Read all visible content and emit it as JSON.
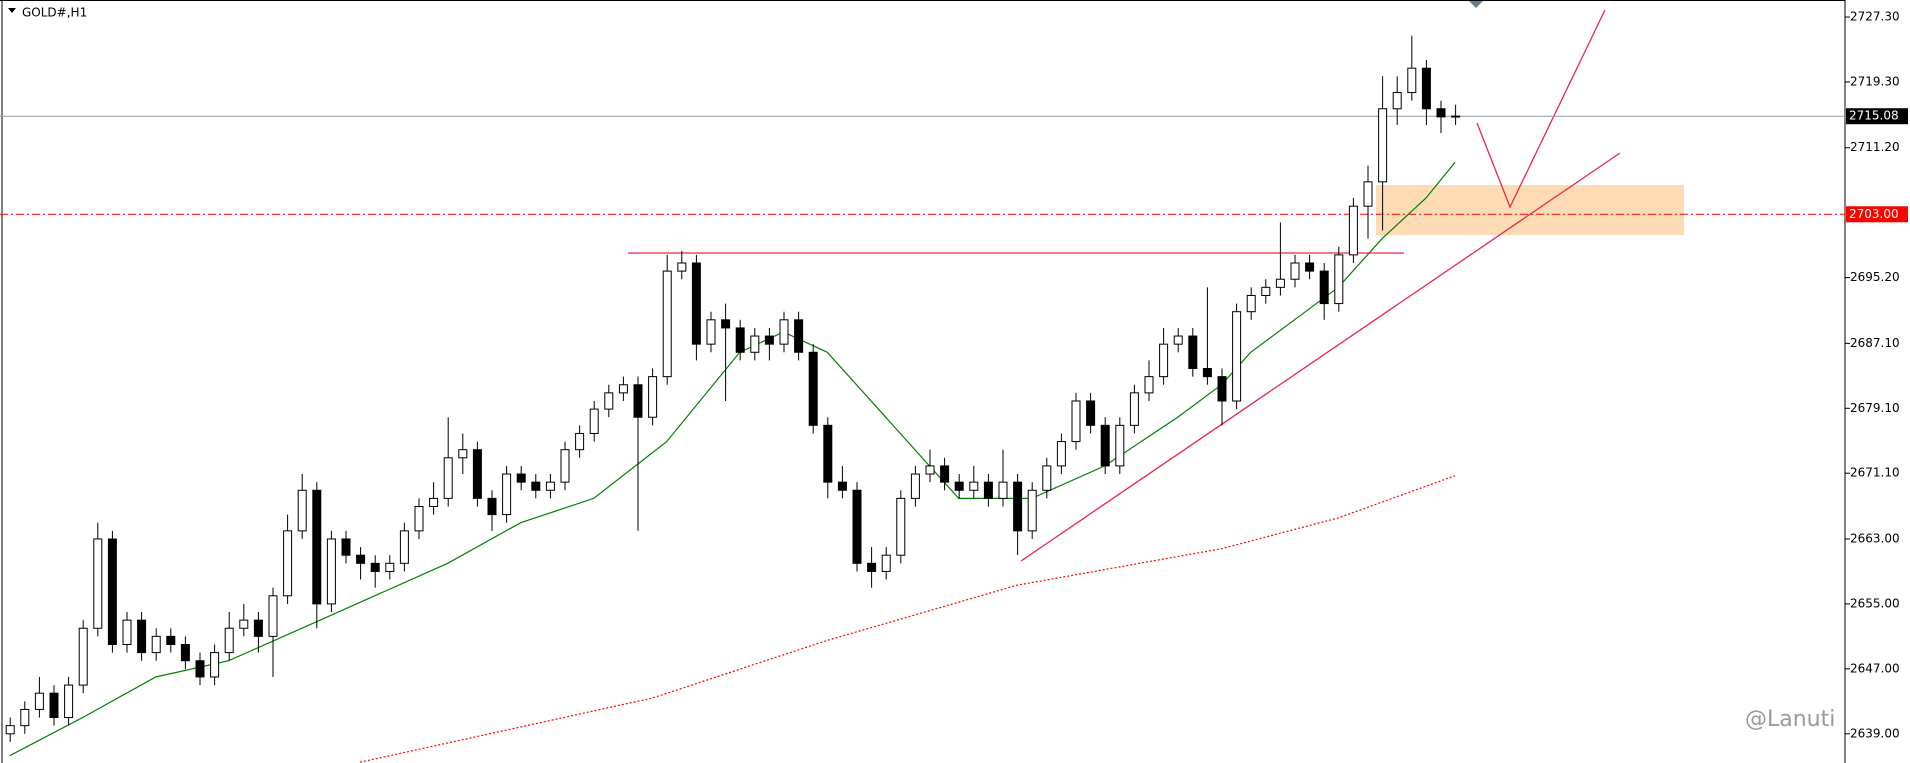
{
  "chart_data": {
    "type": "candlestick",
    "title": "GOLD#,H1",
    "up_color": "#ffffff",
    "down_color": "#000000",
    "edge_color": "#000000",
    "ylim": [
      2635.4,
      2729.4
    ],
    "yticks": [
      {
        "value": 2727.3,
        "label": "2727.30"
      },
      {
        "value": 2719.3,
        "label": "2719.30"
      },
      {
        "value": 2711.2,
        "label": "2711.20"
      },
      {
        "value": 2695.2,
        "label": "2695.20"
      },
      {
        "value": 2687.1,
        "label": "2687.10"
      },
      {
        "value": 2679.1,
        "label": "2679.10"
      },
      {
        "value": 2671.1,
        "label": "2671.10"
      },
      {
        "value": 2663,
        "label": "2663.00"
      },
      {
        "value": 2655,
        "label": "2655.00"
      },
      {
        "value": 2647,
        "label": "2647.00"
      },
      {
        "value": 2639,
        "label": "2639.00"
      }
    ],
    "current_price": {
      "value": 2715.08,
      "label": "2715.08",
      "color": "#8c9aa8"
    },
    "marked_level": {
      "value": 2703,
      "label": "2703.00",
      "color": "#ff0000"
    },
    "watermark": "@Lanuti",
    "ohlc": [
      [
        2639,
        2641,
        2638,
        2640
      ],
      [
        2640,
        2643,
        2639,
        2642
      ],
      [
        2642,
        2646,
        2641,
        2644
      ],
      [
        2644,
        2645,
        2640,
        2641
      ],
      [
        2641,
        2646,
        2640,
        2645
      ],
      [
        2645,
        2653,
        2644,
        2652
      ],
      [
        2652,
        2665,
        2651,
        2663
      ],
      [
        2663,
        2664,
        2649,
        2650
      ],
      [
        2650,
        2654,
        2649,
        2653
      ],
      [
        2653,
        2654,
        2648,
        2649
      ],
      [
        2649,
        2652,
        2648,
        2651
      ],
      [
        2651,
        2652,
        2649,
        2650
      ],
      [
        2650,
        2651,
        2647,
        2648
      ],
      [
        2648,
        2649,
        2645,
        2646
      ],
      [
        2646,
        2650,
        2645,
        2649
      ],
      [
        2649,
        2654,
        2648,
        2652
      ],
      [
        2652,
        2655,
        2651,
        2653
      ],
      [
        2653,
        2654,
        2649,
        2651
      ],
      [
        2651,
        2657,
        2646,
        2656
      ],
      [
        2656,
        2666,
        2655,
        2664
      ],
      [
        2664,
        2671,
        2663,
        2669
      ],
      [
        2669,
        2670,
        2652,
        2655
      ],
      [
        2655,
        2664,
        2654,
        2663
      ],
      [
        2663,
        2664,
        2660,
        2661
      ],
      [
        2661,
        2662,
        2658,
        2660
      ],
      [
        2660,
        2661,
        2657,
        2659
      ],
      [
        2659,
        2661,
        2658,
        2660
      ],
      [
        2660,
        2665,
        2659,
        2664
      ],
      [
        2664,
        2668,
        2663,
        2667
      ],
      [
        2667,
        2670,
        2666,
        2668
      ],
      [
        2668,
        2678,
        2667,
        2673
      ],
      [
        2673,
        2676,
        2671,
        2674
      ],
      [
        2674,
        2675,
        2667,
        2668
      ],
      [
        2668,
        2669,
        2664,
        2666
      ],
      [
        2666,
        2672,
        2665,
        2671
      ],
      [
        2671,
        2672,
        2669,
        2670
      ],
      [
        2670,
        2671,
        2668,
        2669
      ],
      [
        2669,
        2671,
        2668,
        2670
      ],
      [
        2670,
        2675,
        2669,
        2674
      ],
      [
        2674,
        2677,
        2673,
        2676
      ],
      [
        2676,
        2680,
        2675,
        2679
      ],
      [
        2679,
        2682,
        2678,
        2681
      ],
      [
        2681,
        2683,
        2680,
        2682
      ],
      [
        2682,
        2683,
        2664,
        2678
      ],
      [
        2678,
        2684,
        2677,
        2683
      ],
      [
        2683,
        2698,
        2682,
        2696
      ],
      [
        2696,
        2698.5,
        2695,
        2697
      ],
      [
        2697,
        2698,
        2685,
        2687
      ],
      [
        2687,
        2691,
        2686,
        2690
      ],
      [
        2690,
        2692,
        2680,
        2689
      ],
      [
        2689,
        2690,
        2685,
        2686
      ],
      [
        2686,
        2689,
        2685,
        2688
      ],
      [
        2688,
        2689,
        2685,
        2687
      ],
      [
        2687,
        2691,
        2686,
        2690
      ],
      [
        2690,
        2691,
        2685,
        2686
      ],
      [
        2686,
        2687,
        2676,
        2677
      ],
      [
        2677,
        2678,
        2668,
        2670
      ],
      [
        2670,
        2672,
        2668,
        2669
      ],
      [
        2669,
        2670,
        2659,
        2660
      ],
      [
        2660,
        2662,
        2657,
        2659
      ],
      [
        2659,
        2662,
        2658,
        2661
      ],
      [
        2661,
        2669,
        2660,
        2668
      ],
      [
        2668,
        2672,
        2667,
        2671
      ],
      [
        2671,
        2674,
        2670,
        2672
      ],
      [
        2672,
        2673,
        2669,
        2670
      ],
      [
        2670,
        2671,
        2668,
        2669
      ],
      [
        2669,
        2672,
        2668,
        2670
      ],
      [
        2670,
        2671,
        2667,
        2668
      ],
      [
        2668,
        2674,
        2667,
        2670
      ],
      [
        2670,
        2671,
        2661,
        2664
      ],
      [
        2664,
        2670,
        2663,
        2669
      ],
      [
        2669,
        2673,
        2668,
        2672
      ],
      [
        2672,
        2676,
        2671,
        2675
      ],
      [
        2675,
        2681,
        2674,
        2680
      ],
      [
        2680,
        2681,
        2676,
        2677
      ],
      [
        2677,
        2678,
        2671,
        2672
      ],
      [
        2672,
        2678,
        2671,
        2677
      ],
      [
        2677,
        2682,
        2676,
        2681
      ],
      [
        2681,
        2685,
        2680,
        2683
      ],
      [
        2683,
        2689,
        2682,
        2687
      ],
      [
        2687,
        2689,
        2686,
        2688
      ],
      [
        2688,
        2689,
        2683,
        2684
      ],
      [
        2684,
        2694,
        2682,
        2683
      ],
      [
        2683,
        2684,
        2677,
        2680
      ],
      [
        2680,
        2692,
        2679,
        2691
      ],
      [
        2691,
        2694,
        2690,
        2693
      ],
      [
        2693,
        2695,
        2692,
        2694
      ],
      [
        2694,
        2702,
        2693,
        2695
      ],
      [
        2695,
        2698,
        2694,
        2697
      ],
      [
        2697,
        2698,
        2695,
        2696
      ],
      [
        2696,
        2697,
        2690,
        2692
      ],
      [
        2692,
        2699,
        2691,
        2698
      ],
      [
        2698,
        2705,
        2697,
        2704
      ],
      [
        2704,
        2709,
        2700,
        2707
      ],
      [
        2707,
        2720,
        2701,
        2716
      ],
      [
        2716,
        2720,
        2714,
        2718
      ],
      [
        2718,
        2725,
        2717,
        2721
      ],
      [
        2721,
        2722,
        2714,
        2716
      ],
      [
        2716,
        2717,
        2713,
        2715
      ],
      [
        2715,
        2716.5,
        2714,
        2715.1
      ]
    ],
    "ma_fast": {
      "color": "#008000",
      "x": [
        0,
        5,
        10,
        15,
        20,
        25,
        30,
        35,
        40,
        45,
        50,
        53,
        56,
        60,
        65,
        70,
        75,
        80,
        83,
        85,
        88,
        91,
        94,
        97,
        99
      ],
      "values": [
        2636.3,
        2641,
        2646,
        2648,
        2652,
        2656,
        2660,
        2665,
        2668,
        2675,
        2686,
        2688.5,
        2686,
        2678,
        2668,
        2668,
        2672,
        2678,
        2682,
        2686,
        2690,
        2694,
        2700,
        2705,
        2709.4
      ]
    },
    "ma_slow": {
      "color": "#ff0000",
      "x": [
        24,
        44,
        56,
        69,
        83,
        91,
        99
      ],
      "values": [
        2635.5,
        2643.4,
        2650.5,
        2657.3,
        2661.8,
        2665.6,
        2670.8
      ]
    }
  }
}
